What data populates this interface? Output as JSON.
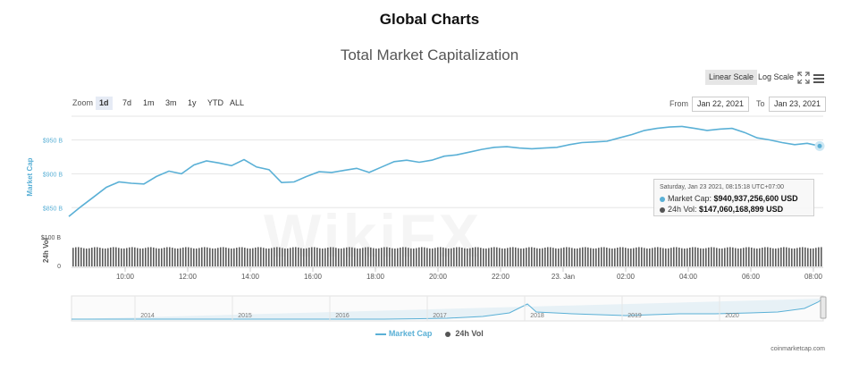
{
  "header": {
    "title": "Global Charts"
  },
  "toolbar": {
    "linear_scale": "Linear Scale",
    "log_scale": "Log Scale",
    "zoom_label": "Zoom",
    "zoom_options": [
      "1d",
      "7d",
      "1m",
      "3m",
      "1y",
      "YTD",
      "ALL"
    ],
    "active_zoom": "1d",
    "from_label": "From",
    "from_value": "Jan 22, 2021",
    "to_label": "To",
    "to_value": "Jan 23, 2021",
    "icons": [
      "fullscreen-icon",
      "menu-icon"
    ]
  },
  "tooltip": {
    "date": "Saturday, Jan 23 2021, 08:15:18 UTC+07:00",
    "market_cap_label": "Market Cap:",
    "market_cap_value": "$940,937,256,600 USD",
    "volume_label": "24h Vol:",
    "volume_value": "$147,060,168,899 USD"
  },
  "watermark": "WikiFX",
  "credit": "coinmarketcap.com",
  "chart_data": {
    "type": "line",
    "title": "Total Market Capitalization",
    "ylabel": "Market Cap",
    "ylabel2": "24h Vol",
    "market_cap_ticks": [
      "$850 B",
      "$900 B",
      "$950 B"
    ],
    "volume_ticks": [
      "0",
      "$100 B"
    ],
    "x_tick_labels": [
      "10:00",
      "12:00",
      "14:00",
      "16:00",
      "18:00",
      "20:00",
      "22:00",
      "23. Jan",
      "02:00",
      "04:00",
      "06:00",
      "08:00"
    ],
    "x_hours": [
      0,
      2,
      4,
      6,
      8,
      10,
      12,
      14,
      16,
      18,
      20,
      22
    ],
    "ylim": [
      820,
      985
    ],
    "series": [
      {
        "name": "Market Cap",
        "color": "#5ab0d6",
        "unit": "$B",
        "x_hours": [
          -1.8,
          -1.4,
          -1.0,
          -0.6,
          -0.2,
          0.2,
          0.6,
          1.0,
          1.4,
          1.8,
          2.2,
          2.6,
          3.0,
          3.4,
          3.8,
          4.2,
          4.6,
          5.0,
          5.4,
          5.8,
          6.2,
          6.6,
          7.0,
          7.4,
          7.8,
          8.2,
          8.6,
          9.0,
          9.4,
          9.8,
          10.2,
          10.6,
          11.0,
          11.4,
          11.8,
          12.2,
          12.6,
          13.0,
          13.4,
          13.8,
          14.2,
          14.6,
          15.0,
          15.4,
          15.8,
          16.2,
          16.6,
          17.0,
          17.4,
          17.8,
          18.2,
          18.6,
          19.0,
          19.4,
          19.8,
          20.2,
          20.6,
          21.0,
          21.4,
          21.8,
          22.2
        ],
        "values": [
          837,
          852,
          866,
          880,
          888,
          886,
          885,
          896,
          904,
          900,
          913,
          919,
          916,
          912,
          921,
          910,
          906,
          887,
          888,
          896,
          903,
          902,
          905,
          908,
          902,
          910,
          918,
          920,
          917,
          920,
          926,
          928,
          932,
          936,
          939,
          940,
          938,
          937,
          938,
          939,
          943,
          946,
          947,
          948,
          953,
          958,
          964,
          967,
          969,
          970,
          967,
          964,
          966,
          967,
          961,
          953,
          950,
          946,
          943,
          945,
          941
        ]
      },
      {
        "name": "24h Vol",
        "color": "#555555",
        "unit": "$B",
        "approx_value": 147
      }
    ],
    "navigator": {
      "x_tick_labels": [
        "2014",
        "2015",
        "2016",
        "2017",
        "2018",
        "2019",
        "2020"
      ]
    },
    "grid": true,
    "legend": "bottom-center"
  }
}
